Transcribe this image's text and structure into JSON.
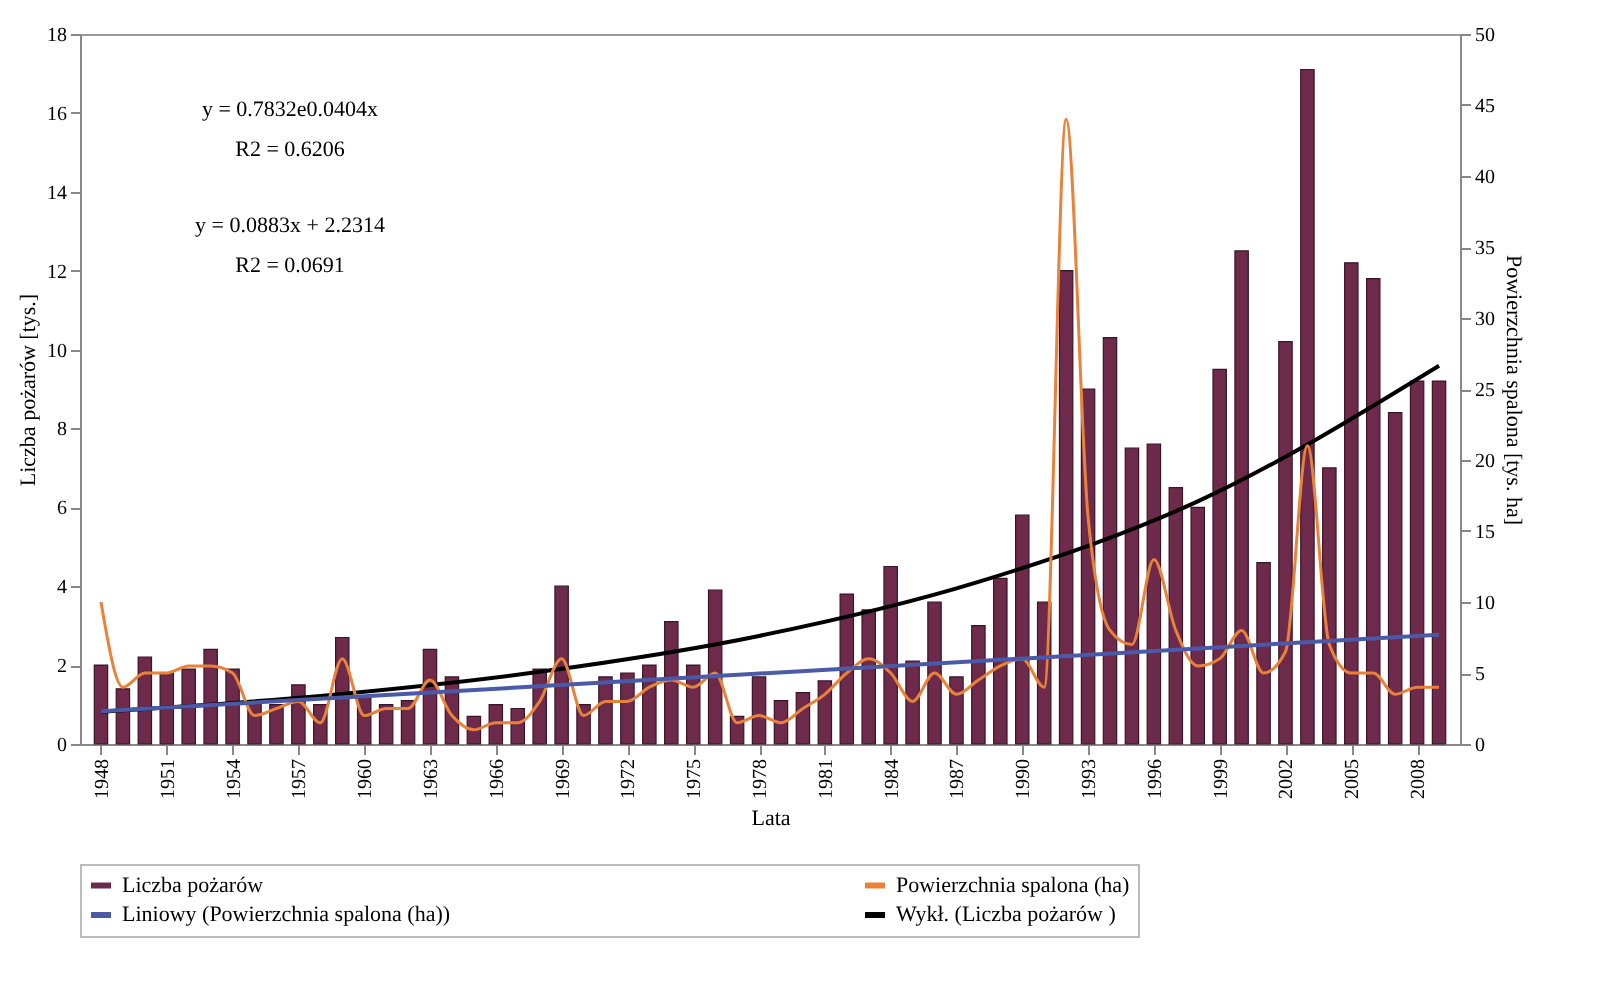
{
  "chart_data": {
    "type": "bar",
    "xlabel": "Lata",
    "ylabel": "Liczba pożarów [tys.]",
    "y2label": "Powierzchnia spalona [tys. ha]",
    "x": [
      1948,
      1949,
      1950,
      1951,
      1952,
      1953,
      1954,
      1955,
      1956,
      1957,
      1958,
      1959,
      1960,
      1961,
      1962,
      1963,
      1964,
      1965,
      1966,
      1967,
      1968,
      1969,
      1970,
      1971,
      1972,
      1973,
      1974,
      1975,
      1976,
      1977,
      1978,
      1979,
      1980,
      1981,
      1982,
      1983,
      1984,
      1985,
      1986,
      1987,
      1988,
      1989,
      1990,
      1991,
      1992,
      1993,
      1994,
      1995,
      1996,
      1997,
      1998,
      1999,
      2000,
      2001,
      2002,
      2003,
      2004,
      2005,
      2006,
      2007,
      2008,
      2009
    ],
    "xlim": [
      1947.5,
      2009.5
    ],
    "xticks": [
      1948,
      1951,
      1954,
      1957,
      1960,
      1963,
      1966,
      1969,
      1972,
      1975,
      1978,
      1981,
      1984,
      1987,
      1990,
      1993,
      1996,
      1999,
      2002,
      2005,
      2008
    ],
    "ylim": [
      0,
      18
    ],
    "yticks": [
      0,
      2,
      4,
      6,
      8,
      10,
      12,
      14,
      16,
      18
    ],
    "y2lim": [
      0,
      50
    ],
    "y2ticks": [
      0,
      5,
      10,
      15,
      20,
      25,
      30,
      35,
      40,
      45,
      50
    ],
    "series": [
      {
        "name": "Liczba pożarów",
        "color": "#6e2a4a",
        "values": [
          2.0,
          1.4,
          2.2,
          1.8,
          1.9,
          2.4,
          1.9,
          1.1,
          1.0,
          1.5,
          1.0,
          2.7,
          1.2,
          1.0,
          1.1,
          2.4,
          1.7,
          0.7,
          1.0,
          0.9,
          1.9,
          4.0,
          1.0,
          1.7,
          1.8,
          2.0,
          3.1,
          2.0,
          3.9,
          0.7,
          1.7,
          1.1,
          1.3,
          1.6,
          3.8,
          3.4,
          4.5,
          2.1,
          3.6,
          1.7,
          3.0,
          4.2,
          5.8,
          3.6,
          12.0,
          9.0,
          10.3,
          7.5,
          7.6,
          6.5,
          6.0,
          9.5,
          12.5,
          4.6,
          10.2,
          17.1,
          7.0,
          12.2,
          11.8,
          8.4,
          9.2,
          9.2
        ]
      },
      {
        "name": "Powierzchnia spalona (ha)",
        "type": "line",
        "axis": "y2",
        "color": "#e8823a",
        "values": [
          10,
          4,
          5,
          5,
          5.5,
          5.5,
          5,
          2,
          2.5,
          3,
          1.5,
          6,
          2,
          2.5,
          2.5,
          4.5,
          2,
          1,
          1.5,
          1.5,
          3,
          6,
          2,
          3,
          3,
          4,
          4.5,
          4,
          5,
          1.5,
          2,
          1.5,
          2.5,
          3.5,
          5,
          6,
          5,
          3,
          5,
          3.5,
          4.5,
          5.5,
          6,
          4,
          44,
          16,
          8,
          7,
          13,
          8,
          5.5,
          6,
          8,
          5,
          6.5,
          21,
          7,
          5,
          5,
          3.5,
          4,
          4
        ]
      },
      {
        "name": "Liniowy (Powierzchnia spalona (ha))",
        "type": "line",
        "axis": "y2",
        "color": "#4a5aa8",
        "x": [
          1948,
          2009
        ],
        "values": [
          2.3,
          7.7
        ]
      },
      {
        "name": "Wykł. (Liczba pożarów )",
        "type": "line",
        "color": "#000000",
        "x": [
          1948,
          1958,
          1968,
          1978,
          1988,
          1998,
          2009
        ],
        "values": [
          0.82,
          1.22,
          1.83,
          2.74,
          4.11,
          6.15,
          9.59
        ]
      }
    ],
    "annotations": [
      "y = 0.7832e0.0404x",
      "R2 = 0.6206",
      "y = 0.0883x + 2.2314",
      "R2 = 0.0691"
    ],
    "legend": "bottom",
    "grid": false,
    "marker": "none",
    "line_style": "solid"
  }
}
